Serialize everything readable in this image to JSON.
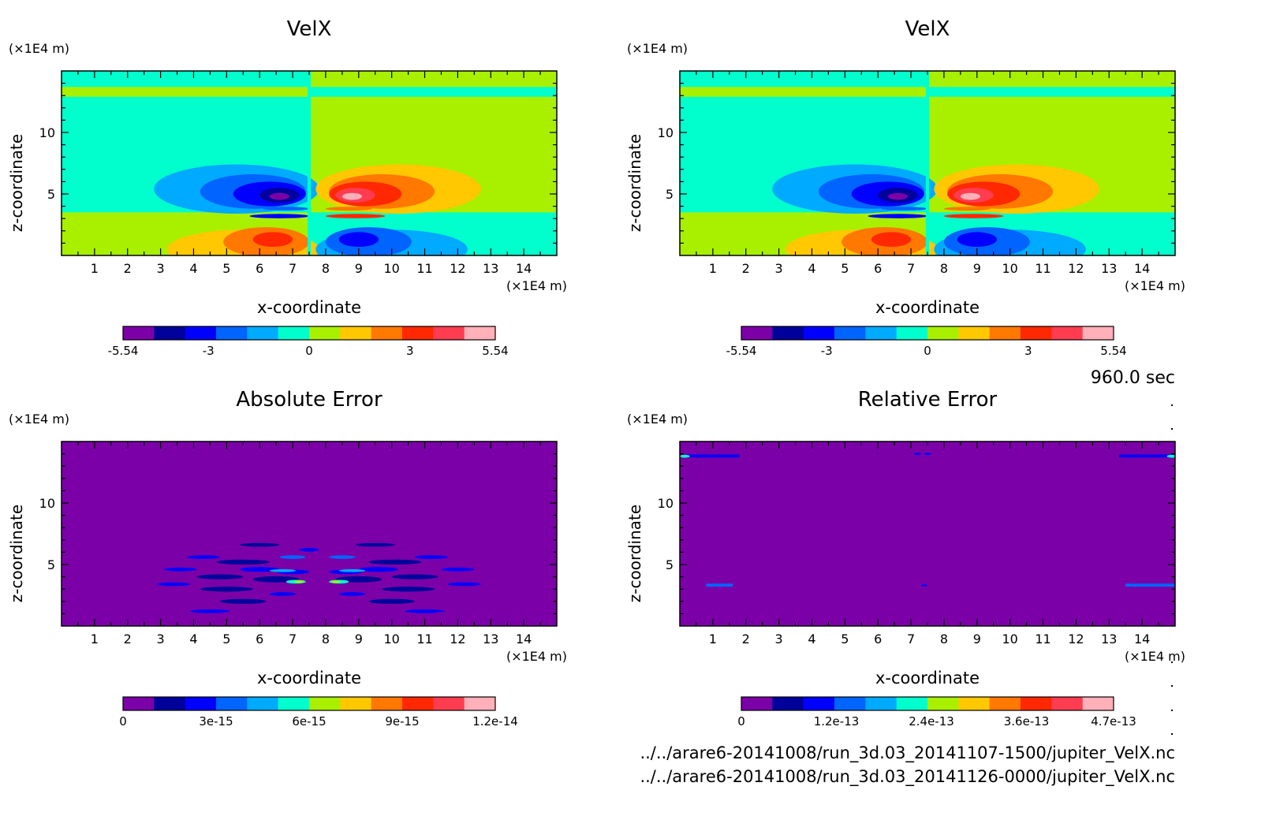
{
  "time_label": "960.0 sec",
  "files": [
    "../../arare6-20141008/run_3d.03_20141107-1500/jupiter_VelX.nc",
    "../../arare6-20141008/run_3d.03_20141126-0000/jupiter_VelX.nc"
  ],
  "chart_data": [
    {
      "type": "heatmap",
      "title": "VelX",
      "xlabel": "x-coordinate",
      "ylabel": "z-coordinate",
      "x_unit": "(×1E4 m)",
      "y_unit": "(×1E4 m)",
      "xlim": [
        0,
        15
      ],
      "ylim": [
        0,
        15
      ],
      "xticks": [
        1,
        2,
        3,
        4,
        5,
        6,
        7,
        8,
        9,
        10,
        11,
        12,
        13,
        14
      ],
      "yticks": [
        5,
        10
      ],
      "colorbar": {
        "range": [
          -5.54,
          5.54
        ],
        "tick_labels": [
          "-5.54",
          "-3",
          "0",
          "3",
          "5.54"
        ],
        "tick_values": [
          -5.54,
          -3,
          0,
          3,
          5.54
        ],
        "colors": [
          "#7b00a8",
          "#00009a",
          "#0000ff",
          "#0064ff",
          "#00aaff",
          "#00ffcc",
          "#a8f000",
          "#ffc800",
          "#ff7800",
          "#ff2800",
          "#ff3c50",
          "#ffb0b8"
        ]
      }
    },
    {
      "type": "heatmap",
      "title": "VelX",
      "xlabel": "x-coordinate",
      "ylabel": "z-coordinate",
      "x_unit": "(×1E4 m)",
      "y_unit": "(×1E4 m)",
      "xlim": [
        0,
        15
      ],
      "ylim": [
        0,
        15
      ],
      "xticks": [
        1,
        2,
        3,
        4,
        5,
        6,
        7,
        8,
        9,
        10,
        11,
        12,
        13,
        14
      ],
      "yticks": [
        5,
        10
      ],
      "colorbar": {
        "range": [
          -5.54,
          5.54
        ],
        "tick_labels": [
          "-5.54",
          "-3",
          "0",
          "3",
          "5.54"
        ],
        "tick_values": [
          -5.54,
          -3,
          0,
          3,
          5.54
        ],
        "colors": [
          "#7b00a8",
          "#00009a",
          "#0000ff",
          "#0064ff",
          "#00aaff",
          "#00ffcc",
          "#a8f000",
          "#ffc800",
          "#ff7800",
          "#ff2800",
          "#ff3c50",
          "#ffb0b8"
        ]
      }
    },
    {
      "type": "heatmap",
      "title": "Absolute Error",
      "xlabel": "x-coordinate",
      "ylabel": "z-coordinate",
      "x_unit": "(×1E4 m)",
      "y_unit": "(×1E4 m)",
      "xlim": [
        0,
        15
      ],
      "ylim": [
        0,
        15
      ],
      "xticks": [
        1,
        2,
        3,
        4,
        5,
        6,
        7,
        8,
        9,
        10,
        11,
        12,
        13,
        14
      ],
      "yticks": [
        5,
        10
      ],
      "colorbar": {
        "range": [
          0,
          1.2e-14
        ],
        "tick_labels": [
          "0",
          "3e-15",
          "6e-15",
          "9e-15",
          "1.2e-14"
        ],
        "tick_values": [
          0,
          3e-15,
          6e-15,
          9e-15,
          1.2e-14
        ],
        "colors": [
          "#7b00a8",
          "#00009a",
          "#0000ff",
          "#0064ff",
          "#00aaff",
          "#00ffcc",
          "#a8f000",
          "#ffc800",
          "#ff7800",
          "#ff2800",
          "#ff3c50",
          "#ffb0b8"
        ]
      }
    },
    {
      "type": "heatmap",
      "title": "Relative Error",
      "xlabel": "x-coordinate",
      "ylabel": "z-coordinate",
      "x_unit": "(×1E4 m)",
      "y_unit": "(×1E4 m)",
      "xlim": [
        0,
        15
      ],
      "ylim": [
        0,
        15
      ],
      "xticks": [
        1,
        2,
        3,
        4,
        5,
        6,
        7,
        8,
        9,
        10,
        11,
        12,
        13,
        14
      ],
      "yticks": [
        5,
        10
      ],
      "colorbar": {
        "range": [
          0,
          4.7e-13
        ],
        "tick_labels": [
          "0",
          "1.2e-13",
          "2.4e-13",
          "3.6e-13",
          "4.7e-13"
        ],
        "tick_values": [
          0,
          1.2e-13,
          2.4e-13,
          3.6e-13,
          4.7e-13
        ],
        "colors": [
          "#7b00a8",
          "#00009a",
          "#0000ff",
          "#0064ff",
          "#00aaff",
          "#00ffcc",
          "#a8f000",
          "#ffc800",
          "#ff7800",
          "#ff2800",
          "#ff3c50",
          "#ffb0b8"
        ]
      }
    }
  ]
}
